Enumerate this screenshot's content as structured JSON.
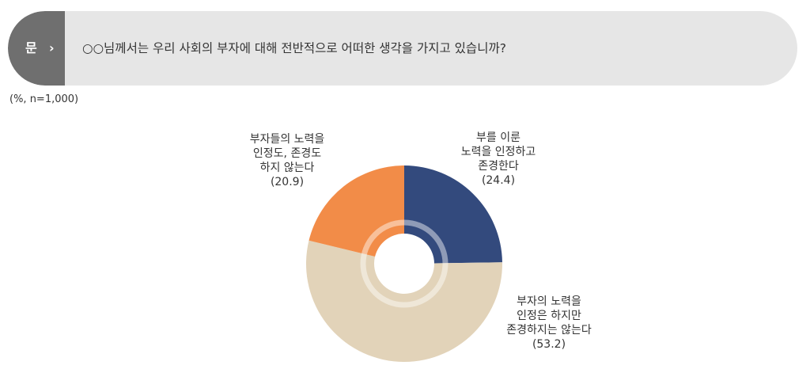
{
  "question": {
    "badge": "문",
    "arrow": "›",
    "text": "○○님께서는 우리 사회의 부자에 대해 전반적으로 어떠한 생각을 가지고 있습니까?"
  },
  "unit_note": "(%, n=1,000)",
  "colors": {
    "respect_both": "#334a7d",
    "not_respect": "#e2d3b9",
    "neither": "#f28c48",
    "badge": "#6f6f6f",
    "question_bg": "#e6e6e6"
  },
  "chart_data": {
    "type": "pie",
    "donut": true,
    "start_angle_deg": 0,
    "direction": "clockwise",
    "series": [
      {
        "label_lines": [
          "부를 이룬",
          "노력을 인정하고",
          "존경한다"
        ],
        "value": 24.4,
        "value_label": "(24.4)",
        "color": "#334a7d"
      },
      {
        "label_lines": [
          "부자의 노력을",
          "인정은 하지만",
          "존경하지는 않는다"
        ],
        "value": 53.2,
        "value_label": "(53.2)",
        "color": "#e2d3b9"
      },
      {
        "label_lines": [
          "부자들의 노력을",
          "인정도, 존경도",
          "하지 않는다"
        ],
        "value": 20.9,
        "value_label": "(20.9)",
        "color": "#f28c48"
      }
    ]
  }
}
